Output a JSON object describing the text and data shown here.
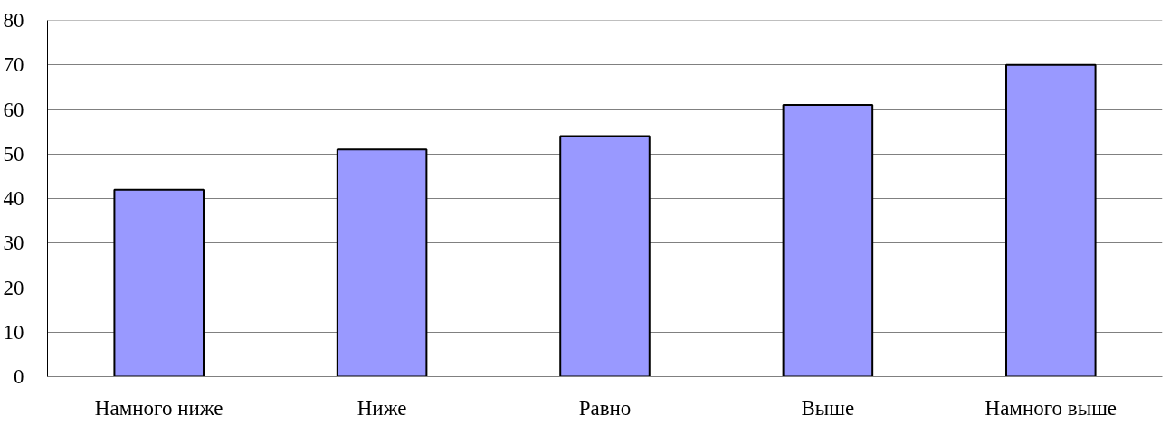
{
  "chart_data": {
    "type": "bar",
    "categories": [
      "Намного ниже",
      "Ниже",
      "Равно",
      "Выше",
      "Намного выше"
    ],
    "values": [
      42,
      51,
      54,
      61,
      70
    ],
    "color": "#9999ff",
    "ylim": [
      0,
      80
    ],
    "yticks": [
      0,
      10,
      20,
      30,
      40,
      50,
      60,
      70,
      80
    ],
    "grid": "y"
  }
}
